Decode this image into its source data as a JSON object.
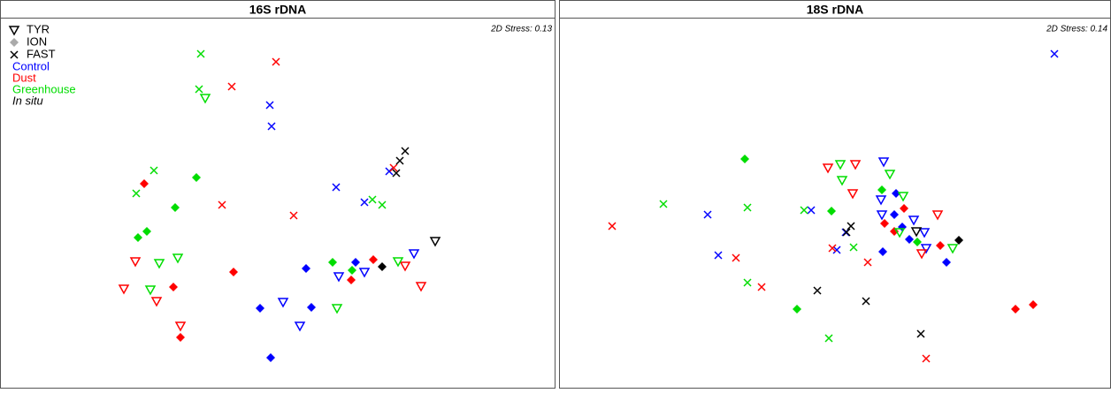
{
  "chart_data": [
    {
      "type": "scatter",
      "title": "16S rDNA",
      "annotation": "2D Stress: 0.13",
      "xlim": [
        0,
        628
      ],
      "ylim": [
        440,
        0
      ],
      "legend_markers": [
        {
          "name": "TYR",
          "shape": "triangle",
          "color": "#000000"
        },
        {
          "name": "ION",
          "shape": "diamond",
          "color": "#aaaaaa"
        },
        {
          "name": "FAST",
          "shape": "cross",
          "color": "#000000"
        }
      ],
      "legend_groups": [
        {
          "name": "Control",
          "color": "#0000ff"
        },
        {
          "name": "Dust",
          "color": "#ff0000"
        },
        {
          "name": "Greenhouse",
          "color": "#00dd00"
        },
        {
          "name": "In situ",
          "color": "#000000"
        }
      ],
      "series": [
        {
          "shape": "cross",
          "color": "#0000ff",
          "x": [
            305,
            307,
            380,
            412,
            440
          ],
          "y": [
            119,
            143,
            212,
            229,
            194
          ]
        },
        {
          "shape": "triangle",
          "color": "#0000ff",
          "x": [
            468,
            412,
            383,
            320,
            339
          ],
          "y": [
            287,
            308,
            313,
            342,
            369
          ]
        },
        {
          "shape": "diamond",
          "color": "#0000ff",
          "x": [
            346,
            402,
            352,
            294,
            306
          ],
          "y": [
            304,
            297,
            348,
            349,
            405
          ]
        },
        {
          "shape": "cross",
          "color": "#ff0000",
          "x": [
            312,
            262,
            251,
            332,
            445
          ],
          "y": [
            70,
            98,
            232,
            244,
            190
          ]
        },
        {
          "shape": "triangle",
          "color": "#ff0000",
          "x": [
            153,
            458,
            476,
            140,
            177,
            204
          ],
          "y": [
            296,
            301,
            324,
            327,
            341,
            369
          ]
        },
        {
          "shape": "diamond",
          "color": "#ff0000",
          "x": [
            163,
            264,
            196,
            204,
            422,
            397
          ],
          "y": [
            208,
            308,
            325,
            382,
            294,
            317
          ]
        },
        {
          "shape": "cross",
          "color": "#00dd00",
          "x": [
            227,
            225,
            174,
            154,
            421,
            432
          ],
          "y": [
            61,
            101,
            193,
            219,
            226,
            232
          ]
        },
        {
          "shape": "triangle",
          "color": "#00dd00",
          "x": [
            232,
            201,
            180,
            450,
            170,
            381
          ],
          "y": [
            111,
            292,
            298,
            296,
            328,
            349
          ]
        },
        {
          "shape": "diamond",
          "color": "#00dd00",
          "x": [
            222,
            198,
            166,
            156,
            376,
            398
          ],
          "y": [
            201,
            235,
            262,
            269,
            297,
            306
          ]
        },
        {
          "shape": "cross",
          "color": "#000000",
          "x": [
            458,
            452,
            448
          ],
          "y": [
            171,
            182,
            196
          ]
        },
        {
          "shape": "triangle",
          "color": "#000000",
          "x": [
            492
          ],
          "y": [
            273
          ]
        },
        {
          "shape": "diamond",
          "color": "#000000",
          "x": [
            432
          ],
          "y": [
            302
          ]
        }
      ]
    },
    {
      "type": "scatter",
      "title": "18S rDNA",
      "annotation": "2D Stress: 0.14",
      "xlim": [
        0,
        624
      ],
      "ylim": [
        440,
        0
      ],
      "series": [
        {
          "shape": "cross",
          "color": "#0000ff",
          "x": [
            560,
            285,
            168,
            180,
            324,
            314
          ],
          "y": [
            61,
            238,
            243,
            289,
            263,
            283
          ]
        },
        {
          "shape": "triangle",
          "color": "#0000ff",
          "x": [
            367,
            364,
            365,
            401,
            413,
            415
          ],
          "y": [
            183,
            226,
            243,
            249,
            263,
            281
          ]
        },
        {
          "shape": "diamond",
          "color": "#0000ff",
          "x": [
            381,
            379,
            388,
            396,
            366,
            438
          ],
          "y": [
            219,
            243,
            257,
            271,
            285,
            297
          ]
        },
        {
          "shape": "cross",
          "color": "#ff0000",
          "x": [
            60,
            200,
            229,
            309,
            349,
            415
          ],
          "y": [
            256,
            292,
            325,
            281,
            297,
            406
          ]
        },
        {
          "shape": "triangle",
          "color": "#ff0000",
          "x": [
            304,
            335,
            332,
            428,
            410
          ],
          "y": [
            190,
            186,
            219,
            243,
            287
          ]
        },
        {
          "shape": "diamond",
          "color": "#ff0000",
          "x": [
            390,
            368,
            379,
            431,
            516,
            536
          ],
          "y": [
            236,
            253,
            262,
            278,
            350,
            345
          ]
        },
        {
          "shape": "cross",
          "color": "#00dd00",
          "x": [
            118,
            213,
            277,
            333,
            213,
            305
          ],
          "y": [
            231,
            235,
            238,
            280,
            320,
            383
          ]
        },
        {
          "shape": "triangle",
          "color": "#00dd00",
          "x": [
            318,
            374,
            320,
            389,
            385,
            445
          ],
          "y": [
            186,
            197,
            204,
            222,
            263,
            281
          ]
        },
        {
          "shape": "diamond",
          "color": "#00dd00",
          "x": [
            210,
            365,
            308,
            405,
            269
          ],
          "y": [
            180,
            215,
            239,
            274,
            350
          ]
        },
        {
          "shape": "cross",
          "color": "#000000",
          "x": [
            330,
            325,
            292,
            347,
            409
          ],
          "y": [
            256,
            263,
            329,
            341,
            378
          ]
        },
        {
          "shape": "triangle",
          "color": "#000000",
          "x": [
            404
          ],
          "y": [
            262
          ]
        },
        {
          "shape": "diamond",
          "color": "#000000",
          "x": [
            452
          ],
          "y": [
            272
          ]
        }
      ]
    }
  ]
}
